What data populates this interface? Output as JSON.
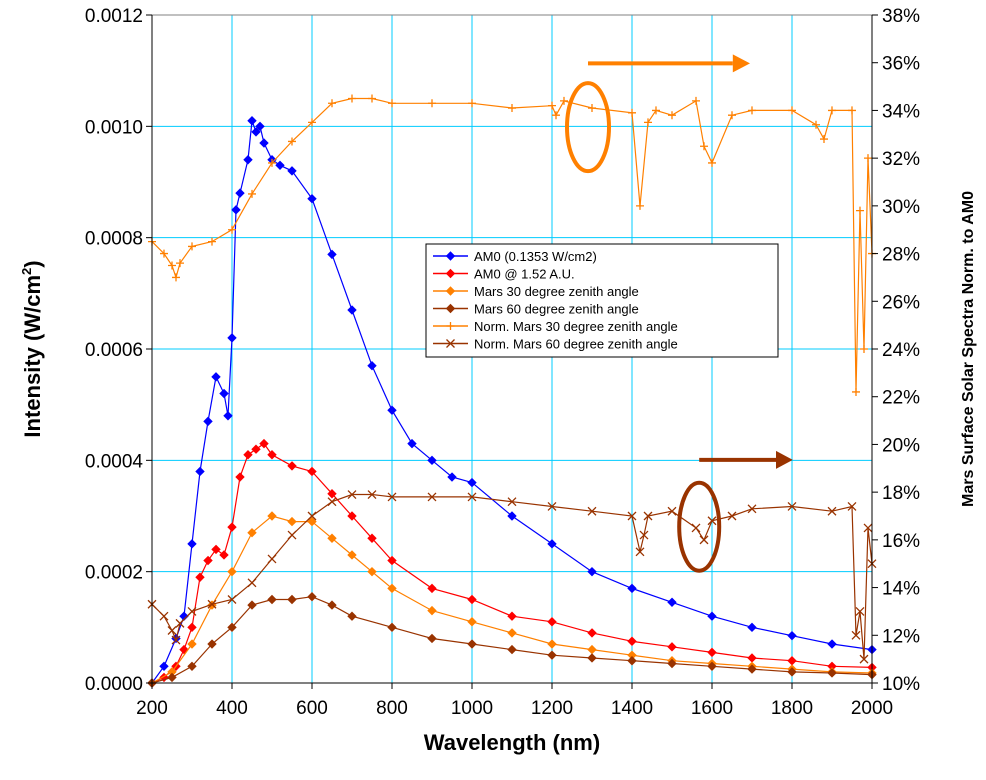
{
  "chart_data": {
    "type": "line",
    "xlabel": "Wavelength (nm)",
    "ylabel": "Intensity (W/cm",
    "ylabel_sup": "2",
    "ylabel_close": ")",
    "y2label": "Mars Surface Solar Spectra Norm. to AM0",
    "xlim": [
      200,
      2000
    ],
    "ylim": [
      0,
      0.0012
    ],
    "y2lim": [
      0.1,
      0.38
    ],
    "grid": true,
    "legend_position": "center-right",
    "x_tick_labels": [
      "200",
      "400",
      "600",
      "800",
      "1000",
      "1200",
      "1400",
      "1600",
      "1800",
      "2000"
    ],
    "y_tick_labels": [
      "0.0000",
      "0.0002",
      "0.0004",
      "0.0006",
      "0.0008",
      "0.0010",
      "0.0012"
    ],
    "y2_tick_labels": [
      "10%",
      "12%",
      "14%",
      "16%",
      "18%",
      "20%",
      "22%",
      "24%",
      "26%",
      "28%",
      "30%",
      "32%",
      "34%",
      "36%",
      "38%"
    ],
    "series": [
      {
        "name": "AM0 (0.1353 W/cm2)",
        "axis": "left",
        "color": "#0000FF",
        "marker": "diamond",
        "x": [
          200,
          230,
          260,
          280,
          300,
          320,
          340,
          360,
          380,
          390,
          400,
          410,
          420,
          440,
          450,
          460,
          470,
          480,
          500,
          520,
          550,
          600,
          650,
          700,
          750,
          800,
          850,
          900,
          950,
          1000,
          1100,
          1200,
          1300,
          1400,
          1500,
          1600,
          1700,
          1800,
          1900,
          2000
        ],
        "y": [
          0.0,
          3e-05,
          8e-05,
          0.00012,
          0.00025,
          0.00038,
          0.00047,
          0.00055,
          0.00052,
          0.00048,
          0.00062,
          0.00085,
          0.00088,
          0.00094,
          0.00101,
          0.00099,
          0.001,
          0.00097,
          0.00094,
          0.00093,
          0.00092,
          0.00087,
          0.00077,
          0.00067,
          0.00057,
          0.00049,
          0.00043,
          0.0004,
          0.00037,
          0.00036,
          0.0003,
          0.00025,
          0.0002,
          0.00017,
          0.000145,
          0.00012,
          0.0001,
          8.5e-05,
          7e-05,
          6e-05
        ]
      },
      {
        "name": "AM0 @ 1.52 A.U.",
        "axis": "left",
        "color": "#FF0000",
        "marker": "diamond",
        "x": [
          200,
          230,
          260,
          280,
          300,
          320,
          340,
          360,
          380,
          400,
          420,
          440,
          460,
          480,
          500,
          550,
          600,
          650,
          700,
          750,
          800,
          900,
          1000,
          1100,
          1200,
          1300,
          1400,
          1500,
          1600,
          1700,
          1800,
          1900,
          2000
        ],
        "y": [
          0.0,
          1e-05,
          3e-05,
          6e-05,
          0.0001,
          0.00019,
          0.00022,
          0.00024,
          0.00023,
          0.00028,
          0.00037,
          0.00041,
          0.00042,
          0.00043,
          0.00041,
          0.00039,
          0.00038,
          0.00034,
          0.0003,
          0.00026,
          0.00022,
          0.00017,
          0.00015,
          0.00012,
          0.00011,
          9e-05,
          7.5e-05,
          6.5e-05,
          5.5e-05,
          4.5e-05,
          4e-05,
          3e-05,
          2.8e-05
        ]
      },
      {
        "name": "Mars 30 degree zenith angle",
        "axis": "left",
        "color": "#FF8000",
        "marker": "diamond",
        "x": [
          200,
          250,
          300,
          350,
          400,
          450,
          500,
          550,
          600,
          650,
          700,
          750,
          800,
          900,
          1000,
          1100,
          1200,
          1300,
          1400,
          1500,
          1600,
          1700,
          1800,
          1900,
          2000
        ],
        "y": [
          0.0,
          2e-05,
          7e-05,
          0.00014,
          0.0002,
          0.00027,
          0.0003,
          0.00029,
          0.00029,
          0.00026,
          0.00023,
          0.0002,
          0.00017,
          0.00013,
          0.00011,
          9e-05,
          7e-05,
          6e-05,
          5e-05,
          4e-05,
          3.5e-05,
          3e-05,
          2.5e-05,
          2e-05,
          1.8e-05
        ]
      },
      {
        "name": "Mars 60 degree zenith angle",
        "axis": "left",
        "color": "#993300",
        "marker": "diamond",
        "x": [
          200,
          250,
          300,
          350,
          400,
          450,
          500,
          550,
          600,
          650,
          700,
          800,
          900,
          1000,
          1100,
          1200,
          1300,
          1400,
          1500,
          1600,
          1700,
          1800,
          1900,
          2000
        ],
        "y": [
          0.0,
          1e-05,
          3e-05,
          7e-05,
          0.0001,
          0.00014,
          0.00015,
          0.00015,
          0.000155,
          0.00014,
          0.00012,
          0.0001,
          8e-05,
          7e-05,
          6e-05,
          5e-05,
          4.5e-05,
          4e-05,
          3.5e-05,
          3e-05,
          2.5e-05,
          2e-05,
          1.8e-05,
          1.5e-05
        ]
      },
      {
        "name": "Norm. Mars 30 degree zenith angle",
        "axis": "right",
        "color": "#FF8000",
        "marker": "plus",
        "x": [
          200,
          230,
          250,
          260,
          270,
          300,
          350,
          400,
          450,
          500,
          550,
          600,
          650,
          700,
          750,
          800,
          900,
          1000,
          1100,
          1200,
          1210,
          1230,
          1300,
          1400,
          1420,
          1440,
          1460,
          1500,
          1560,
          1580,
          1600,
          1650,
          1700,
          1800,
          1860,
          1880,
          1900,
          1950,
          1960,
          1970,
          1980,
          1990,
          2000
        ],
        "y": [
          0.285,
          0.28,
          0.275,
          0.27,
          0.276,
          0.283,
          0.285,
          0.29,
          0.305,
          0.318,
          0.327,
          0.335,
          0.343,
          0.345,
          0.345,
          0.343,
          0.343,
          0.343,
          0.341,
          0.342,
          0.338,
          0.344,
          0.341,
          0.339,
          0.3,
          0.335,
          0.34,
          0.338,
          0.344,
          0.325,
          0.318,
          0.338,
          0.34,
          0.34,
          0.334,
          0.328,
          0.34,
          0.34,
          0.222,
          0.298,
          0.24,
          0.32,
          0.28
        ]
      },
      {
        "name": "Norm. Mars 60 degree zenith angle",
        "axis": "right",
        "color": "#993300",
        "marker": "x",
        "x": [
          200,
          230,
          250,
          260,
          270,
          300,
          350,
          400,
          450,
          500,
          550,
          600,
          650,
          700,
          750,
          800,
          900,
          1000,
          1100,
          1200,
          1300,
          1400,
          1420,
          1430,
          1440,
          1500,
          1560,
          1580,
          1600,
          1650,
          1700,
          1800,
          1900,
          1950,
          1960,
          1970,
          1980,
          1990,
          2000
        ],
        "y": [
          0.133,
          0.128,
          0.122,
          0.118,
          0.125,
          0.13,
          0.133,
          0.135,
          0.142,
          0.152,
          0.162,
          0.17,
          0.176,
          0.179,
          0.179,
          0.178,
          0.178,
          0.178,
          0.176,
          0.174,
          0.172,
          0.17,
          0.155,
          0.162,
          0.17,
          0.172,
          0.165,
          0.16,
          0.168,
          0.17,
          0.173,
          0.174,
          0.172,
          0.174,
          0.12,
          0.13,
          0.11,
          0.165,
          0.15
        ]
      }
    ]
  }
}
